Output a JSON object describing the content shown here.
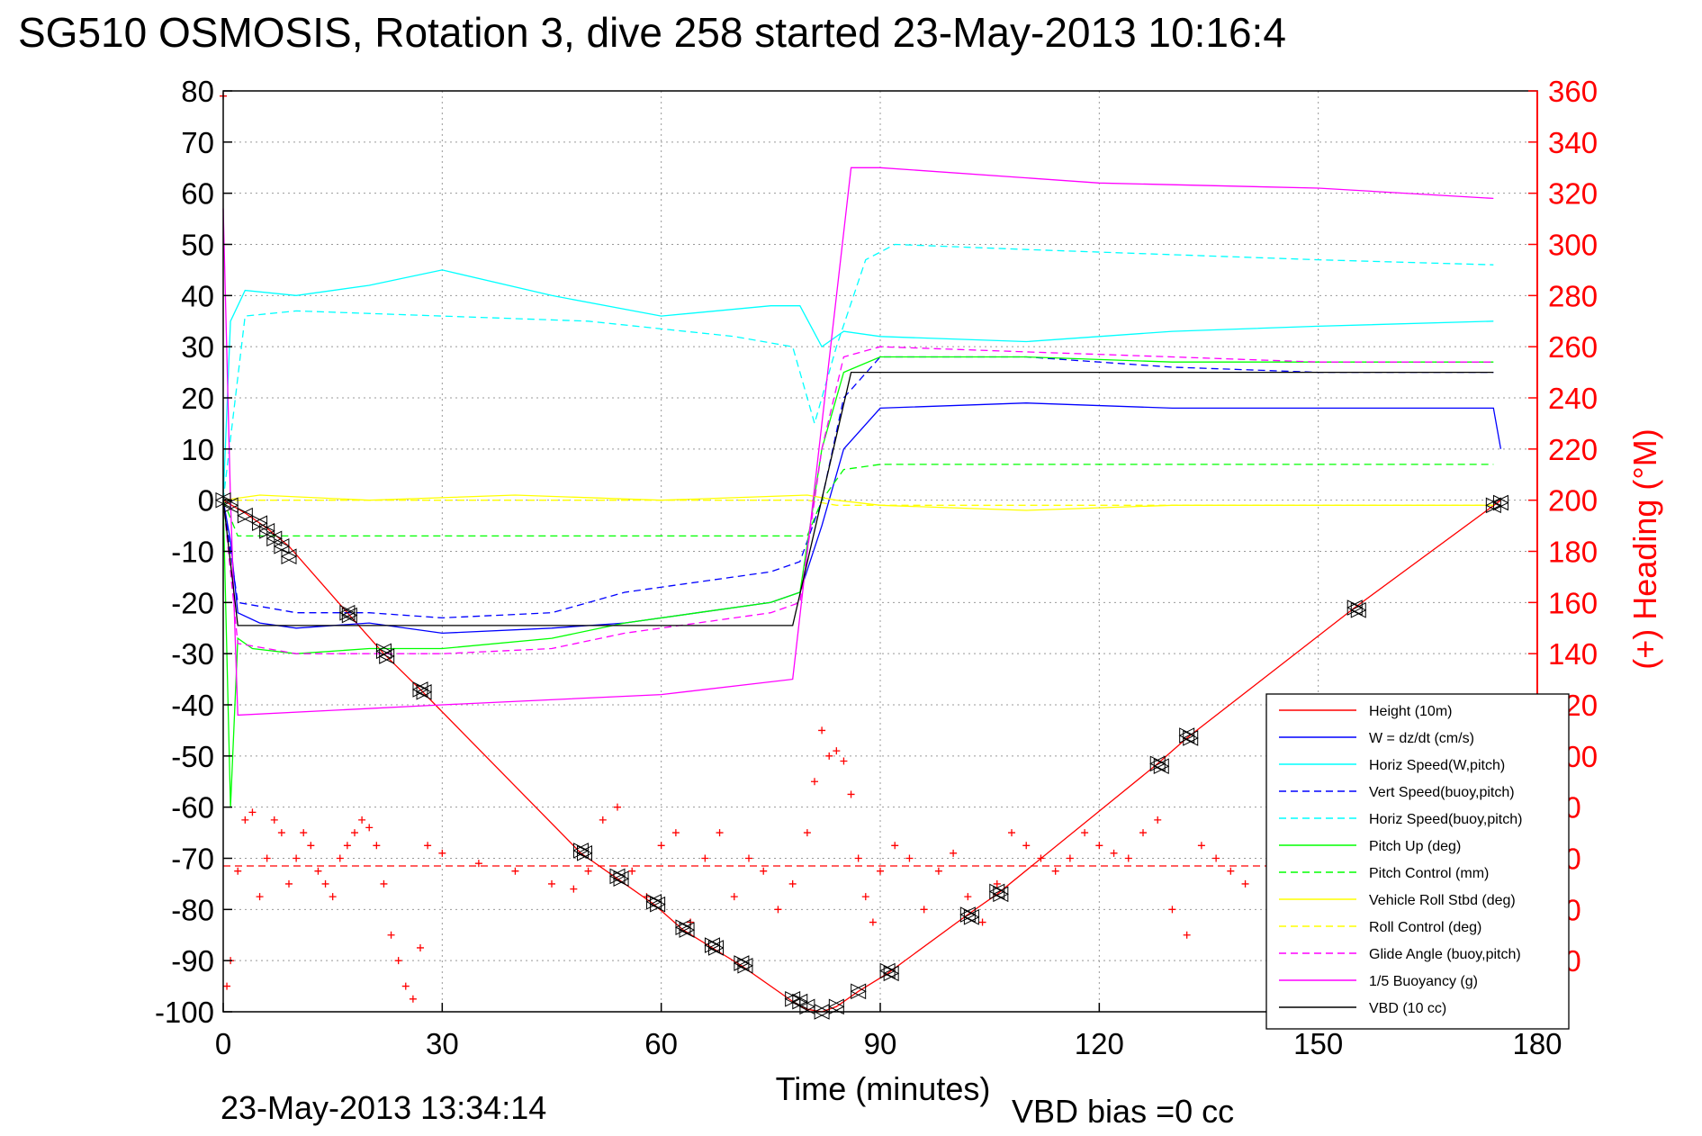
{
  "title": "SG510 OSMOSIS, Rotation 3, dive 258 started 23-May-2013 10:16:4",
  "footer_timestamp": "23-May-2013 13:34:14",
  "footer_vbd_bias": "VBD bias =0 cc",
  "chart_data": {
    "type": "line",
    "xlabel": "Time (minutes)",
    "ylabel_right": "(+) Heading (°M)",
    "xlim": [
      0,
      180
    ],
    "ylim_left": [
      -100,
      80
    ],
    "ylim_right": [
      0,
      360
    ],
    "x_ticks": [
      "0",
      "30",
      "60",
      "90",
      "120",
      "150",
      "180"
    ],
    "y_ticks_left": [
      "80",
      "70",
      "60",
      "50",
      "40",
      "30",
      "20",
      "10",
      "0",
      "-10",
      "-20",
      "-30",
      "-40",
      "-50",
      "-60",
      "-70",
      "-80",
      "-90",
      "-100"
    ],
    "y_ticks_right": [
      "360",
      "340",
      "320",
      "300",
      "280",
      "260",
      "240",
      "220",
      "200",
      "180",
      "160",
      "140",
      "120",
      "100",
      "80",
      "60",
      "40",
      "20",
      "0"
    ],
    "grid": true,
    "legend_position": "lower-right",
    "series": [
      {
        "name": "Height (10m)",
        "color": "#ff0000",
        "style": "solid",
        "x": [
          0,
          3,
          6,
          9,
          17,
          22,
          27,
          49,
          54,
          59,
          63,
          67,
          71,
          78,
          80,
          82,
          84,
          87,
          91,
          102,
          106,
          128,
          132,
          155,
          175
        ],
        "y": [
          0,
          -2.5,
          -5.5,
          -9,
          -22,
          -30,
          -37,
          -69,
          -74,
          -79,
          -84,
          -87.5,
          -91,
          -98,
          -99.5,
          -100,
          -99,
          -96,
          -92.5,
          -81,
          -77,
          -51.5,
          -46.5,
          -21,
          0
        ]
      },
      {
        "name": "W = dz/dt (cm/s)",
        "color": "#0000ff",
        "style": "solid",
        "x": [
          0,
          1,
          2,
          5,
          10,
          20,
          30,
          45,
          55,
          65,
          75,
          79,
          82,
          85,
          90,
          110,
          130,
          150,
          174,
          175
        ],
        "y": [
          0,
          -8,
          -22,
          -24,
          -25,
          -24,
          -26,
          -25,
          -24,
          -22,
          -20,
          -18,
          -5,
          10,
          18,
          19,
          18,
          18,
          18,
          10
        ]
      },
      {
        "name": "Horiz Speed(W,pitch)",
        "color": "#00ffff",
        "style": "solid",
        "x": [
          0,
          1,
          3,
          10,
          20,
          30,
          45,
          60,
          75,
          79,
          82,
          85,
          90,
          110,
          130,
          150,
          174
        ],
        "y": [
          0,
          35,
          41,
          40,
          42,
          45,
          40,
          36,
          38,
          38,
          30,
          33,
          32,
          31,
          33,
          34,
          35
        ]
      },
      {
        "name": "Vert Speed(buoy,pitch)",
        "color": "#0000ff",
        "style": "dashed",
        "x": [
          0,
          2,
          10,
          20,
          30,
          45,
          55,
          65,
          75,
          79,
          82,
          85,
          90,
          110,
          130,
          150,
          174
        ],
        "y": [
          0,
          -20,
          -22,
          -22,
          -23,
          -22,
          -18,
          -16,
          -14,
          -12,
          0,
          20,
          28,
          28,
          26,
          25,
          25
        ]
      },
      {
        "name": "Horiz Speed(buoy,pitch)",
        "color": "#00ffff",
        "style": "dashed",
        "x": [
          0,
          3,
          10,
          30,
          50,
          70,
          78,
          81,
          84,
          88,
          92,
          110,
          130,
          150,
          174
        ],
        "y": [
          0,
          36,
          37,
          36,
          35,
          32,
          30,
          15,
          30,
          47,
          50,
          49,
          48,
          47,
          46
        ]
      },
      {
        "name": "Pitch Up (deg)",
        "color": "#00ff00",
        "style": "solid",
        "x": [
          0,
          1,
          2,
          4,
          10,
          20,
          30,
          45,
          55,
          65,
          75,
          79,
          82,
          85,
          90,
          110,
          130,
          150,
          174
        ],
        "y": [
          0,
          -60,
          -27,
          -29,
          -30,
          -29,
          -29,
          -27,
          -24,
          -22,
          -20,
          -18,
          10,
          25,
          28,
          28,
          27,
          27,
          27
        ]
      },
      {
        "name": "Pitch Control (mm)",
        "color": "#00ff00",
        "style": "dashed",
        "x": [
          0,
          2,
          80,
          82,
          85,
          90,
          110,
          130,
          150,
          174
        ],
        "y": [
          0,
          -7,
          -7,
          0,
          6,
          7,
          7,
          7,
          7,
          7
        ]
      },
      {
        "name": "Vehicle Roll Stbd (deg)",
        "color": "#ffff00",
        "style": "solid",
        "x": [
          0,
          5,
          20,
          40,
          60,
          80,
          84,
          90,
          110,
          130,
          150,
          174
        ],
        "y": [
          0,
          1,
          0,
          1,
          0,
          1,
          0,
          -1,
          -2,
          -1,
          -1,
          -1
        ]
      },
      {
        "name": "Roll Control (deg)",
        "color": "#ffff00",
        "style": "dashed",
        "x": [
          0,
          80,
          84,
          174
        ],
        "y": [
          0,
          0,
          -1,
          -1
        ]
      },
      {
        "name": "Glide Angle (buoy,pitch)",
        "color": "#ff00ff",
        "style": "dashed",
        "x": [
          0,
          2,
          10,
          20,
          30,
          45,
          55,
          65,
          75,
          79,
          82,
          85,
          90,
          110,
          130,
          150,
          174
        ],
        "y": [
          0,
          -28,
          -30,
          -30,
          -30,
          -29,
          -26,
          -24,
          -22,
          -20,
          10,
          28,
          30,
          29,
          28,
          27,
          27
        ]
      },
      {
        "name": "1/5 Buoyancy (g)",
        "color": "#ff00ff",
        "style": "solid",
        "x": [
          0,
          1,
          2,
          30,
          60,
          78,
          86,
          90,
          120,
          150,
          174
        ],
        "y": [
          57,
          0,
          -42,
          -40,
          -38,
          -35,
          65,
          65,
          62,
          61,
          59
        ]
      },
      {
        "name": "VBD (10 cc)",
        "color": "#000000",
        "style": "solid",
        "x": [
          0,
          2,
          78,
          86,
          174
        ],
        "y": [
          0,
          -24.5,
          -24.5,
          25,
          25
        ]
      }
    ],
    "heading": {
      "name": "Heading",
      "color": "#ff0000",
      "marker": "+",
      "mean_line": 57,
      "x": [
        0,
        0.5,
        1,
        2,
        3,
        4,
        5,
        6,
        7,
        8,
        9,
        10,
        11,
        12,
        13,
        14,
        15,
        16,
        17,
        18,
        19,
        20,
        21,
        22,
        23,
        24,
        25,
        26,
        27,
        28,
        30,
        35,
        40,
        45,
        48,
        50,
        52,
        54,
        56,
        58,
        60,
        62,
        64,
        66,
        68,
        70,
        72,
        74,
        76,
        78,
        80,
        81,
        82,
        83,
        84,
        85,
        86,
        87,
        88,
        89,
        90,
        92,
        94,
        96,
        98,
        100,
        102,
        104,
        106,
        108,
        110,
        112,
        114,
        116,
        118,
        120,
        122,
        124,
        126,
        128,
        130,
        132,
        134,
        136,
        138,
        140
      ],
      "y": [
        358,
        10,
        20,
        55,
        75,
        78,
        45,
        60,
        75,
        70,
        50,
        60,
        70,
        65,
        55,
        50,
        45,
        60,
        65,
        70,
        75,
        72,
        65,
        50,
        30,
        20,
        10,
        5,
        25,
        65,
        62,
        58,
        55,
        50,
        48,
        55,
        75,
        80,
        55,
        45,
        65,
        70,
        35,
        60,
        70,
        45,
        60,
        55,
        40,
        50,
        70,
        90,
        110,
        100,
        102,
        98,
        85,
        60,
        45,
        35,
        55,
        65,
        60,
        40,
        55,
        62,
        45,
        35,
        50,
        70,
        65,
        60,
        55,
        60,
        70,
        65,
        62,
        60,
        70,
        75,
        40,
        30,
        65,
        60,
        55,
        50
      ]
    },
    "markers": {
      "name": "GC markers",
      "color": "#000000",
      "x": [
        0,
        1,
        3,
        5,
        6,
        7,
        8,
        9,
        17,
        17.3,
        22,
        22.4,
        27,
        27.5,
        49,
        49.5,
        54,
        54.5,
        59,
        59.5,
        63,
        63.5,
        67,
        67.5,
        71,
        71.5,
        78,
        79,
        80,
        82,
        84,
        87,
        91,
        91.5,
        102,
        102.5,
        106,
        106.5,
        128,
        128.5,
        132,
        132.5,
        155,
        155.5,
        174,
        175
      ],
      "y": [
        0,
        -1,
        -3,
        -4.5,
        -6,
        -7.5,
        -9,
        -11,
        -22,
        -22.5,
        -29.5,
        -30.5,
        -37,
        -37.5,
        -68.5,
        -69,
        -73.5,
        -74,
        -78.5,
        -79,
        -83.5,
        -84,
        -87,
        -87.5,
        -90.5,
        -91,
        -97.5,
        -98,
        -99,
        -100,
        -99,
        -96,
        -92,
        -92.5,
        -81,
        -81.5,
        -76.5,
        -77,
        -51.5,
        -52,
        -46,
        -46.5,
        -21,
        -21.5,
        -1,
        -0.5
      ]
    }
  }
}
